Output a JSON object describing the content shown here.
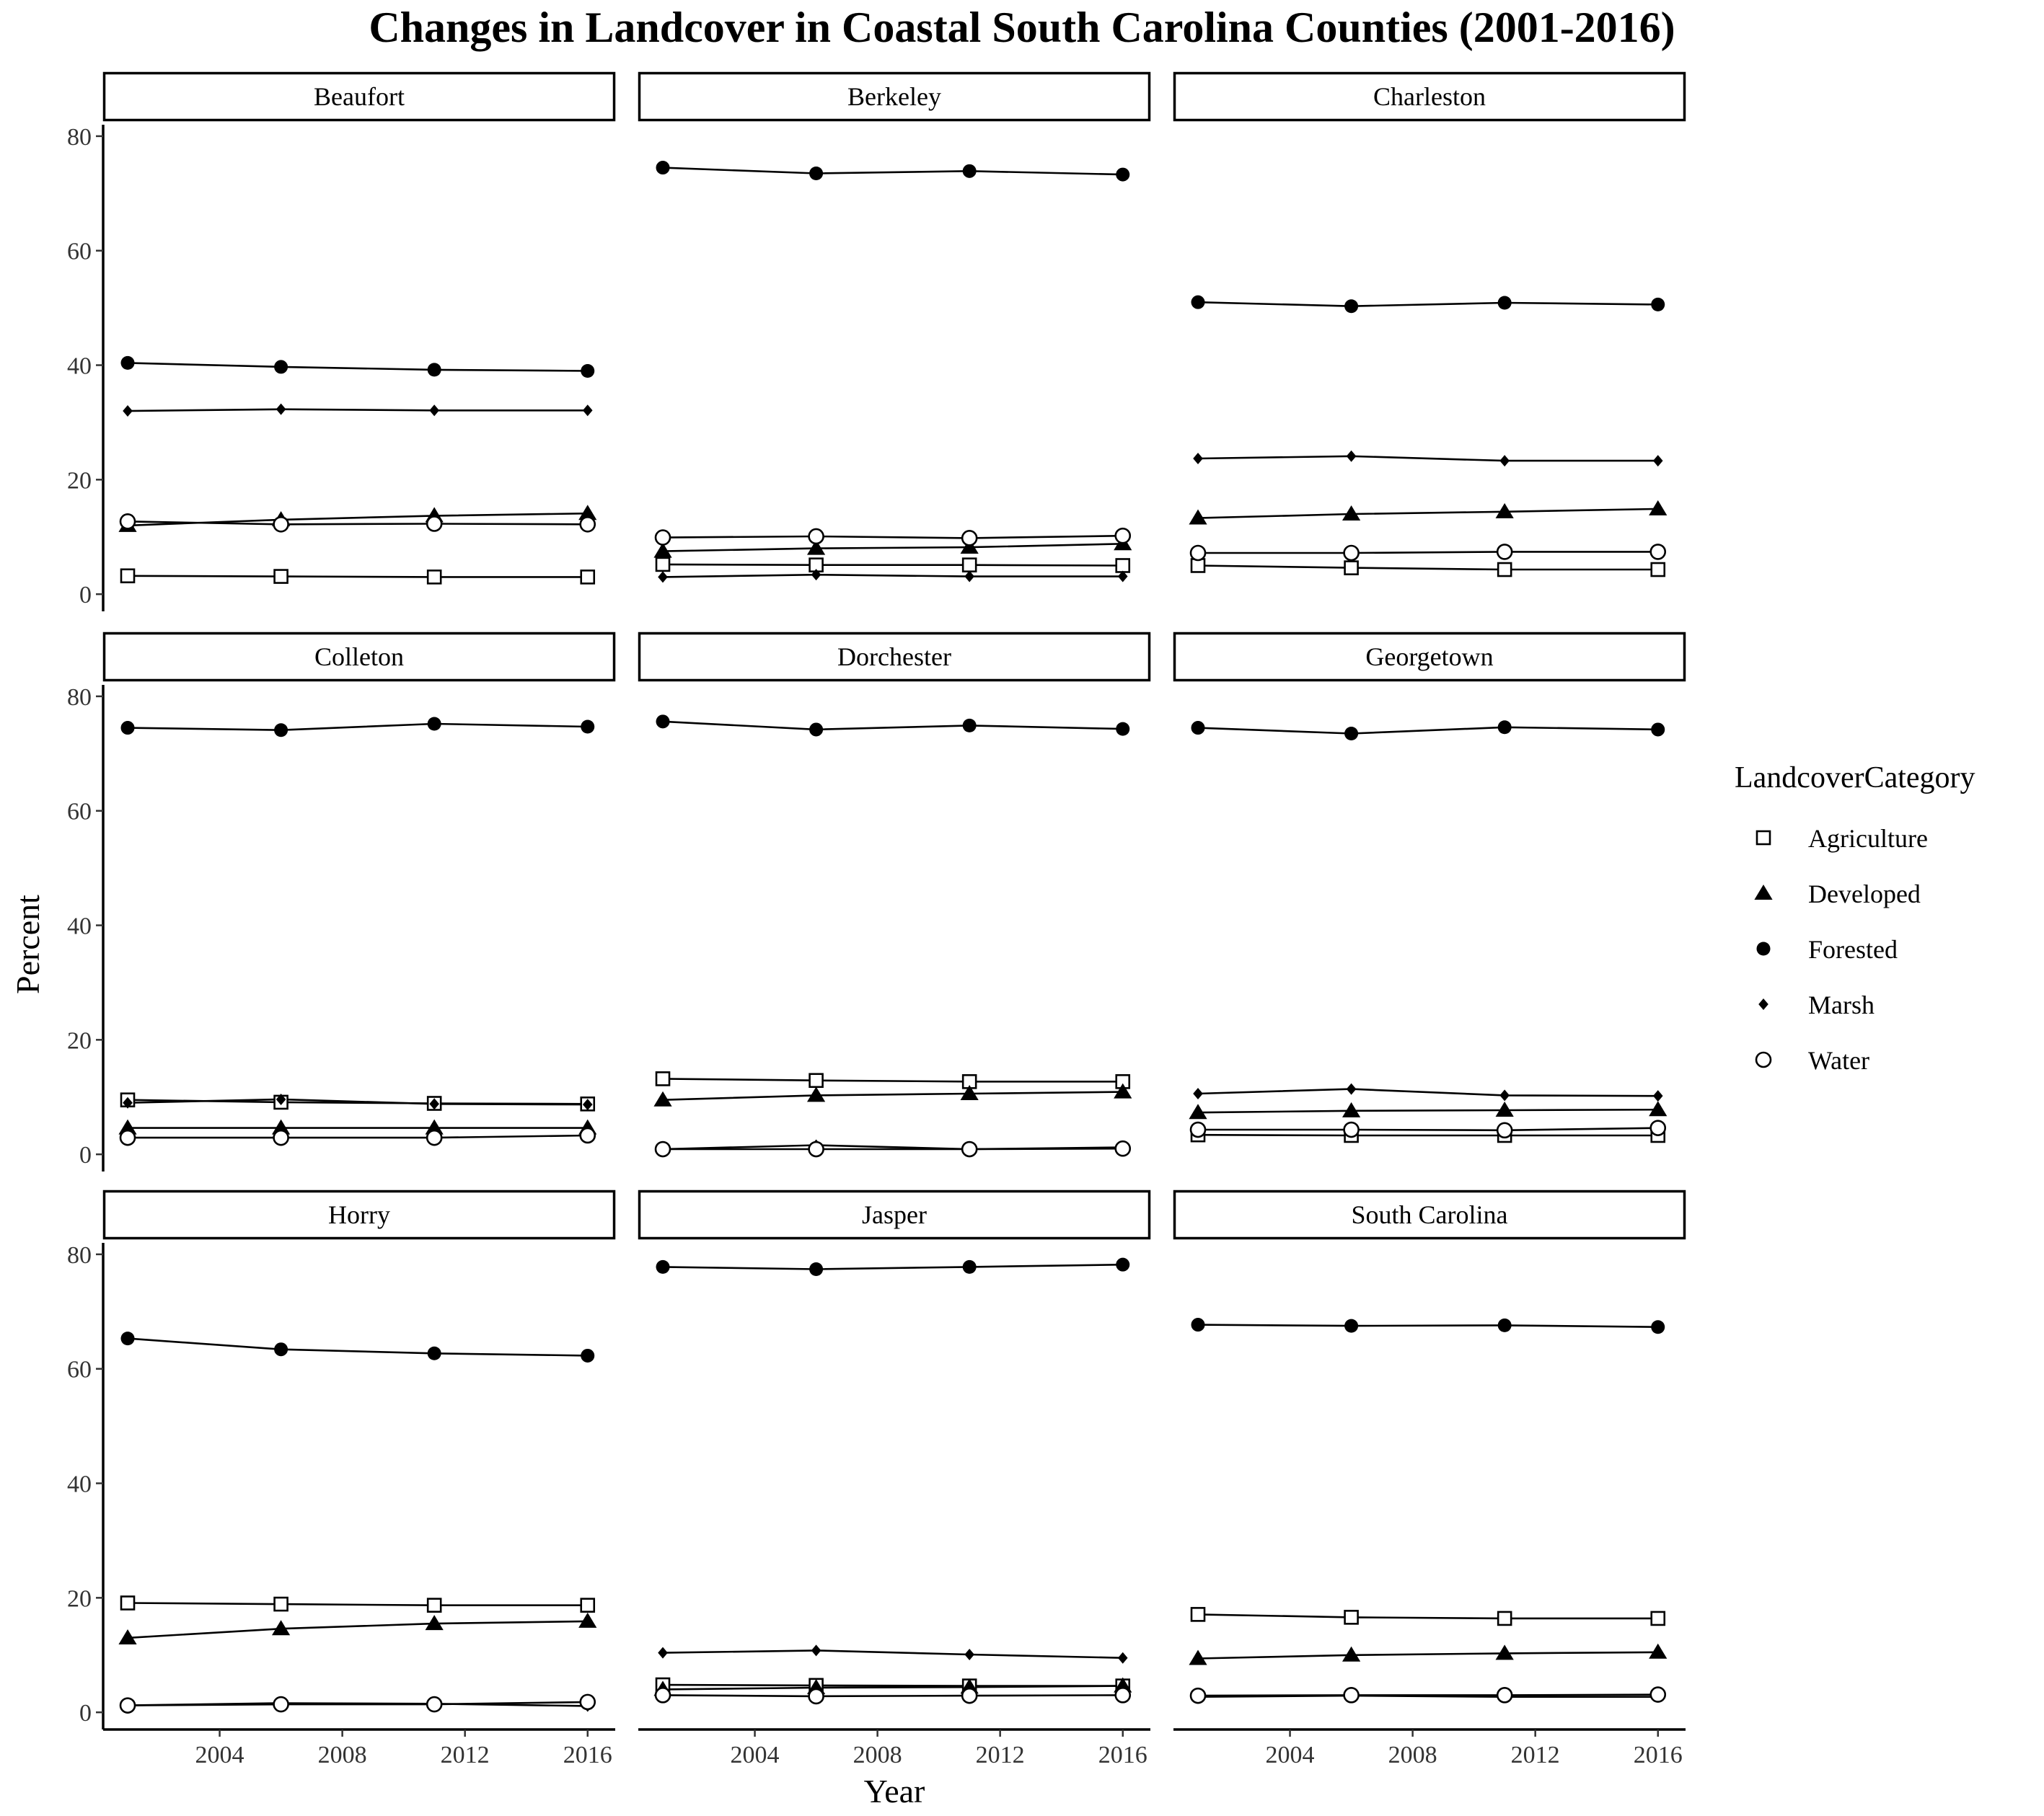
{
  "chart_data": {
    "type": "line",
    "title": "Changes in Landcover in Coastal South Carolina Counties (2001-2016)",
    "xlabel": "Year",
    "ylabel": "Percent",
    "x": [
      2001,
      2006,
      2011,
      2016
    ],
    "xticks": [
      "2004",
      "2008",
      "2012",
      "2016"
    ],
    "yticks": [
      "0",
      "20",
      "40",
      "60",
      "80"
    ],
    "xlim": [
      2000.2,
      2016.9
    ],
    "ylim": [
      -3,
      82
    ],
    "legend": {
      "title": "LandcoverCategory",
      "position": "right",
      "entries": [
        {
          "name": "Agriculture",
          "shape": "open-square"
        },
        {
          "name": "Developed",
          "shape": "filled-triangle"
        },
        {
          "name": "Forested",
          "shape": "filled-circle"
        },
        {
          "name": "Marsh",
          "shape": "filled-diamond"
        },
        {
          "name": "Water",
          "shape": "open-circle"
        }
      ]
    },
    "facets": [
      {
        "name": "Beaufort",
        "series": [
          {
            "name": "Agriculture",
            "values": [
              3.2,
              3.1,
              3.0,
              3.0
            ]
          },
          {
            "name": "Developed",
            "values": [
              12.0,
              13.0,
              13.7,
              14.1
            ]
          },
          {
            "name": "Forested",
            "values": [
              40.4,
              39.7,
              39.2,
              39.0
            ]
          },
          {
            "name": "Marsh",
            "values": [
              32.0,
              32.3,
              32.1,
              32.1
            ]
          },
          {
            "name": "Water",
            "values": [
              12.7,
              12.2,
              12.3,
              12.2
            ]
          }
        ]
      },
      {
        "name": "Berkeley",
        "series": [
          {
            "name": "Agriculture",
            "values": [
              5.2,
              5.1,
              5.1,
              5.0
            ]
          },
          {
            "name": "Developed",
            "values": [
              7.5,
              8.0,
              8.2,
              8.8
            ]
          },
          {
            "name": "Forested",
            "values": [
              74.5,
              73.5,
              73.9,
              73.3
            ]
          },
          {
            "name": "Marsh",
            "values": [
              3.0,
              3.4,
              3.1,
              3.1
            ]
          },
          {
            "name": "Water",
            "values": [
              9.9,
              10.1,
              9.8,
              10.2
            ]
          }
        ]
      },
      {
        "name": "Charleston",
        "series": [
          {
            "name": "Agriculture",
            "values": [
              5.0,
              4.6,
              4.3,
              4.3
            ]
          },
          {
            "name": "Developed",
            "values": [
              13.3,
              14.0,
              14.4,
              14.9
            ]
          },
          {
            "name": "Forested",
            "values": [
              51.0,
              50.3,
              50.9,
              50.6
            ]
          },
          {
            "name": "Marsh",
            "values": [
              23.7,
              24.1,
              23.3,
              23.3
            ]
          },
          {
            "name": "Water",
            "values": [
              7.2,
              7.2,
              7.4,
              7.4
            ]
          }
        ]
      },
      {
        "name": "Colleton",
        "series": [
          {
            "name": "Agriculture",
            "values": [
              9.5,
              9.1,
              8.9,
              8.8
            ]
          },
          {
            "name": "Developed",
            "values": [
              4.6,
              4.6,
              4.6,
              4.6
            ]
          },
          {
            "name": "Forested",
            "values": [
              74.5,
              74.1,
              75.2,
              74.7
            ]
          },
          {
            "name": "Marsh",
            "values": [
              9.0,
              9.6,
              8.8,
              8.7
            ]
          },
          {
            "name": "Water",
            "values": [
              2.9,
              2.9,
              2.9,
              3.3
            ]
          }
        ]
      },
      {
        "name": "Dorchester",
        "series": [
          {
            "name": "Agriculture",
            "values": [
              13.2,
              12.9,
              12.7,
              12.7
            ]
          },
          {
            "name": "Developed",
            "values": [
              9.5,
              10.3,
              10.6,
              10.9
            ]
          },
          {
            "name": "Forested",
            "values": [
              75.6,
              74.2,
              74.9,
              74.3
            ]
          },
          {
            "name": "Marsh",
            "values": [
              0.9,
              1.6,
              0.9,
              1.2
            ]
          },
          {
            "name": "Water",
            "values": [
              0.9,
              0.9,
              0.9,
              1.0
            ]
          }
        ]
      },
      {
        "name": "Georgetown",
        "series": [
          {
            "name": "Agriculture",
            "values": [
              3.4,
              3.3,
              3.3,
              3.3
            ]
          },
          {
            "name": "Developed",
            "values": [
              7.3,
              7.6,
              7.7,
              7.8
            ]
          },
          {
            "name": "Forested",
            "values": [
              74.5,
              73.5,
              74.6,
              74.2
            ]
          },
          {
            "name": "Marsh",
            "values": [
              10.6,
              11.4,
              10.3,
              10.2
            ]
          },
          {
            "name": "Water",
            "values": [
              4.3,
              4.3,
              4.2,
              4.6
            ]
          }
        ]
      },
      {
        "name": "Horry",
        "series": [
          {
            "name": "Agriculture",
            "values": [
              19.1,
              18.9,
              18.7,
              18.7
            ]
          },
          {
            "name": "Developed",
            "values": [
              13.0,
              14.6,
              15.5,
              15.9
            ]
          },
          {
            "name": "Forested",
            "values": [
              65.3,
              63.4,
              62.7,
              62.3
            ]
          },
          {
            "name": "Marsh",
            "values": [
              1.2,
              1.6,
              1.5,
              1.1
            ]
          },
          {
            "name": "Water",
            "values": [
              1.2,
              1.4,
              1.4,
              1.8
            ]
          }
        ]
      },
      {
        "name": "Jasper",
        "series": [
          {
            "name": "Agriculture",
            "values": [
              4.8,
              4.7,
              4.6,
              4.6
            ]
          },
          {
            "name": "Developed",
            "values": [
              4.0,
              4.3,
              4.4,
              4.6
            ]
          },
          {
            "name": "Forested",
            "values": [
              77.8,
              77.4,
              77.8,
              78.2
            ]
          },
          {
            "name": "Marsh",
            "values": [
              10.4,
              10.8,
              10.1,
              9.5
            ]
          },
          {
            "name": "Water",
            "values": [
              3.0,
              2.8,
              2.9,
              3.0
            ]
          }
        ]
      },
      {
        "name": "South Carolina",
        "series": [
          {
            "name": "Agriculture",
            "values": [
              17.1,
              16.6,
              16.4,
              16.4
            ]
          },
          {
            "name": "Developed",
            "values": [
              9.4,
              10.0,
              10.3,
              10.5
            ]
          },
          {
            "name": "Forested",
            "values": [
              67.7,
              67.5,
              67.6,
              67.3
            ]
          },
          {
            "name": "Marsh",
            "values": [
              2.7,
              2.9,
              2.7,
              2.7
            ]
          },
          {
            "name": "Water",
            "values": [
              2.9,
              3.0,
              3.0,
              3.1
            ]
          }
        ]
      }
    ]
  }
}
